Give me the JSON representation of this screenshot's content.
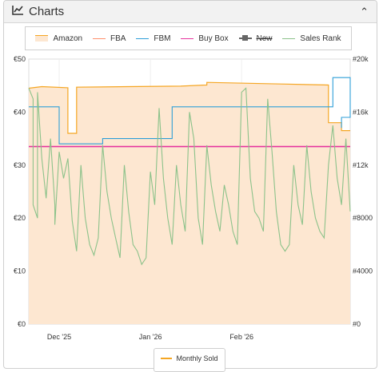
{
  "panel": {
    "title": "Charts",
    "collapse_icon": "chevron-up-icon"
  },
  "colors": {
    "amazon_line": "#f5a623",
    "amazon_fill": "#fde7d1",
    "fba": "#ff8f6b",
    "fbm": "#2f9fd8",
    "buy_box": "#e6359f",
    "new": "#666666",
    "sales_rank": "#8cc28a",
    "grid": "#eeeeee"
  },
  "legend": [
    {
      "key": "amazon",
      "label": "Amazon"
    },
    {
      "key": "fba",
      "label": "FBA"
    },
    {
      "key": "fbm",
      "label": "FBM"
    },
    {
      "key": "buy_box",
      "label": "Buy Box"
    },
    {
      "key": "new",
      "label": "New",
      "disabled": true
    },
    {
      "key": "sales_rank",
      "label": "Sales Rank"
    }
  ],
  "secondary_legend": {
    "label": "Monthly Sold"
  },
  "chart_data": {
    "type": "line",
    "x_domain": [
      "2025-12-16",
      "2026-02-28"
    ],
    "x_ticks": [
      {
        "date": "2025-12-23",
        "label": "Dec '25"
      },
      {
        "date": "2026-01-13",
        "label": "Jan '26"
      },
      {
        "date": "2026-02-03",
        "label": "Feb '26"
      }
    ],
    "y_left": {
      "ylim": [
        0,
        50
      ],
      "ticks": [
        0,
        10,
        20,
        30,
        40,
        50
      ],
      "tick_labels": [
        "€0",
        "€10",
        "€20",
        "€30",
        "€40",
        "€50"
      ]
    },
    "y_right": {
      "ylim": [
        0,
        20000
      ],
      "ticks": [
        0,
        4000,
        8000,
        12000,
        16000,
        20000
      ],
      "tick_labels": [
        "#0",
        "#4000",
        "#8000",
        "#12k",
        "#16k",
        "#20k"
      ]
    },
    "series": [
      {
        "name": "Amazon",
        "axis": "left",
        "style": "step-area",
        "points": [
          [
            "2025-12-16",
            44.5
          ],
          [
            "2025-12-19",
            44.8
          ],
          [
            "2025-12-25",
            44.6
          ],
          [
            "2025-12-25",
            36.0
          ],
          [
            "2025-12-27",
            36.0
          ],
          [
            "2025-12-27",
            44.7
          ],
          [
            "2026-01-08",
            44.8
          ],
          [
            "2026-01-20",
            44.9
          ],
          [
            "2026-01-26",
            45.1
          ],
          [
            "2026-01-26",
            45.6
          ],
          [
            "2026-02-12",
            45.3
          ],
          [
            "2026-02-23",
            45.1
          ],
          [
            "2026-02-23",
            38.0
          ],
          [
            "2026-02-26",
            38.0
          ],
          [
            "2026-02-26",
            36.5
          ],
          [
            "2026-02-28",
            36.5
          ]
        ]
      },
      {
        "name": "FBM",
        "axis": "left",
        "style": "step",
        "points": [
          [
            "2025-12-16",
            41.0
          ],
          [
            "2025-12-23",
            41.0
          ],
          [
            "2025-12-23",
            34.0
          ],
          [
            "2026-01-02",
            34.0
          ],
          [
            "2026-01-02",
            35.0
          ],
          [
            "2026-01-18",
            35.0
          ],
          [
            "2026-01-18",
            41.0
          ],
          [
            "2026-02-24",
            41.0
          ],
          [
            "2026-02-24",
            46.5
          ],
          [
            "2026-02-28",
            46.5
          ],
          [
            "2026-02-28",
            39.0
          ],
          [
            "2026-02-26",
            39.0
          ],
          [
            "2026-02-26",
            37.0
          ]
        ]
      },
      {
        "name": "Buy Box",
        "axis": "left",
        "style": "step",
        "points": [
          [
            "2025-12-16",
            33.5
          ],
          [
            "2026-02-28",
            33.5
          ]
        ]
      },
      {
        "name": "Sales Rank",
        "axis": "right",
        "style": "step",
        "points": [
          [
            "2025-12-16",
            17800
          ],
          [
            "2025-12-17",
            17000
          ],
          [
            "2025-12-17",
            9000
          ],
          [
            "2025-12-18",
            8000
          ],
          [
            "2025-12-18",
            17500
          ],
          [
            "2025-12-19",
            12500
          ],
          [
            "2025-12-20",
            9500
          ],
          [
            "2025-12-21",
            14000
          ],
          [
            "2025-12-22",
            9000
          ],
          [
            "2025-12-22",
            7500
          ],
          [
            "2025-12-23",
            13000
          ],
          [
            "2025-12-24",
            11000
          ],
          [
            "2025-12-25",
            12500
          ],
          [
            "2025-12-26",
            7800
          ],
          [
            "2025-12-27",
            5500
          ],
          [
            "2025-12-28",
            12000
          ],
          [
            "2025-12-29",
            8000
          ],
          [
            "2025-12-30",
            6000
          ],
          [
            "2025-12-31",
            5200
          ],
          [
            "2026-01-01",
            6500
          ],
          [
            "2026-01-02",
            13500
          ],
          [
            "2026-01-03",
            10000
          ],
          [
            "2026-01-04",
            8000
          ],
          [
            "2026-01-05",
            6500
          ],
          [
            "2026-01-06",
            5000
          ],
          [
            "2026-01-07",
            12000
          ],
          [
            "2026-01-08",
            8500
          ],
          [
            "2026-01-09",
            6000
          ],
          [
            "2026-01-10",
            5500
          ],
          [
            "2026-01-11",
            4500
          ],
          [
            "2026-01-12",
            5000
          ],
          [
            "2026-01-13",
            11500
          ],
          [
            "2026-01-14",
            9000
          ],
          [
            "2026-01-15",
            16300
          ],
          [
            "2026-01-16",
            11000
          ],
          [
            "2026-01-17",
            8000
          ],
          [
            "2026-01-18",
            6000
          ],
          [
            "2026-01-19",
            12000
          ],
          [
            "2026-01-20",
            9000
          ],
          [
            "2026-01-21",
            7000
          ],
          [
            "2026-01-22",
            16000
          ],
          [
            "2026-01-23",
            14000
          ],
          [
            "2026-01-24",
            8000
          ],
          [
            "2026-01-25",
            6000
          ],
          [
            "2026-01-26",
            13500
          ],
          [
            "2026-01-27",
            10500
          ],
          [
            "2026-01-28",
            8500
          ],
          [
            "2026-01-29",
            7000
          ],
          [
            "2026-01-30",
            10500
          ],
          [
            "2026-01-31",
            9000
          ],
          [
            "2026-02-01",
            7000
          ],
          [
            "2026-02-02",
            6000
          ],
          [
            "2026-02-03",
            17500
          ],
          [
            "2026-02-04",
            17800
          ],
          [
            "2026-02-05",
            11000
          ],
          [
            "2026-02-06",
            8500
          ],
          [
            "2026-02-07",
            8000
          ],
          [
            "2026-02-08",
            7000
          ],
          [
            "2026-02-09",
            17000
          ],
          [
            "2026-02-10",
            13000
          ],
          [
            "2026-02-11",
            8500
          ],
          [
            "2026-02-12",
            6000
          ],
          [
            "2026-02-13",
            5500
          ],
          [
            "2026-02-14",
            6000
          ],
          [
            "2026-02-15",
            12000
          ],
          [
            "2026-02-16",
            9000
          ],
          [
            "2026-02-17",
            7500
          ],
          [
            "2026-02-18",
            13500
          ],
          [
            "2026-02-19",
            10000
          ],
          [
            "2026-02-20",
            8000
          ],
          [
            "2026-02-21",
            7000
          ],
          [
            "2026-02-22",
            6500
          ],
          [
            "2026-02-23",
            12000
          ],
          [
            "2026-02-24",
            15000
          ],
          [
            "2026-02-25",
            11000
          ],
          [
            "2026-02-26",
            9000
          ],
          [
            "2026-02-27",
            14000
          ],
          [
            "2026-02-28",
            8500
          ]
        ]
      }
    ],
    "grid": true,
    "legend_position": "top"
  }
}
